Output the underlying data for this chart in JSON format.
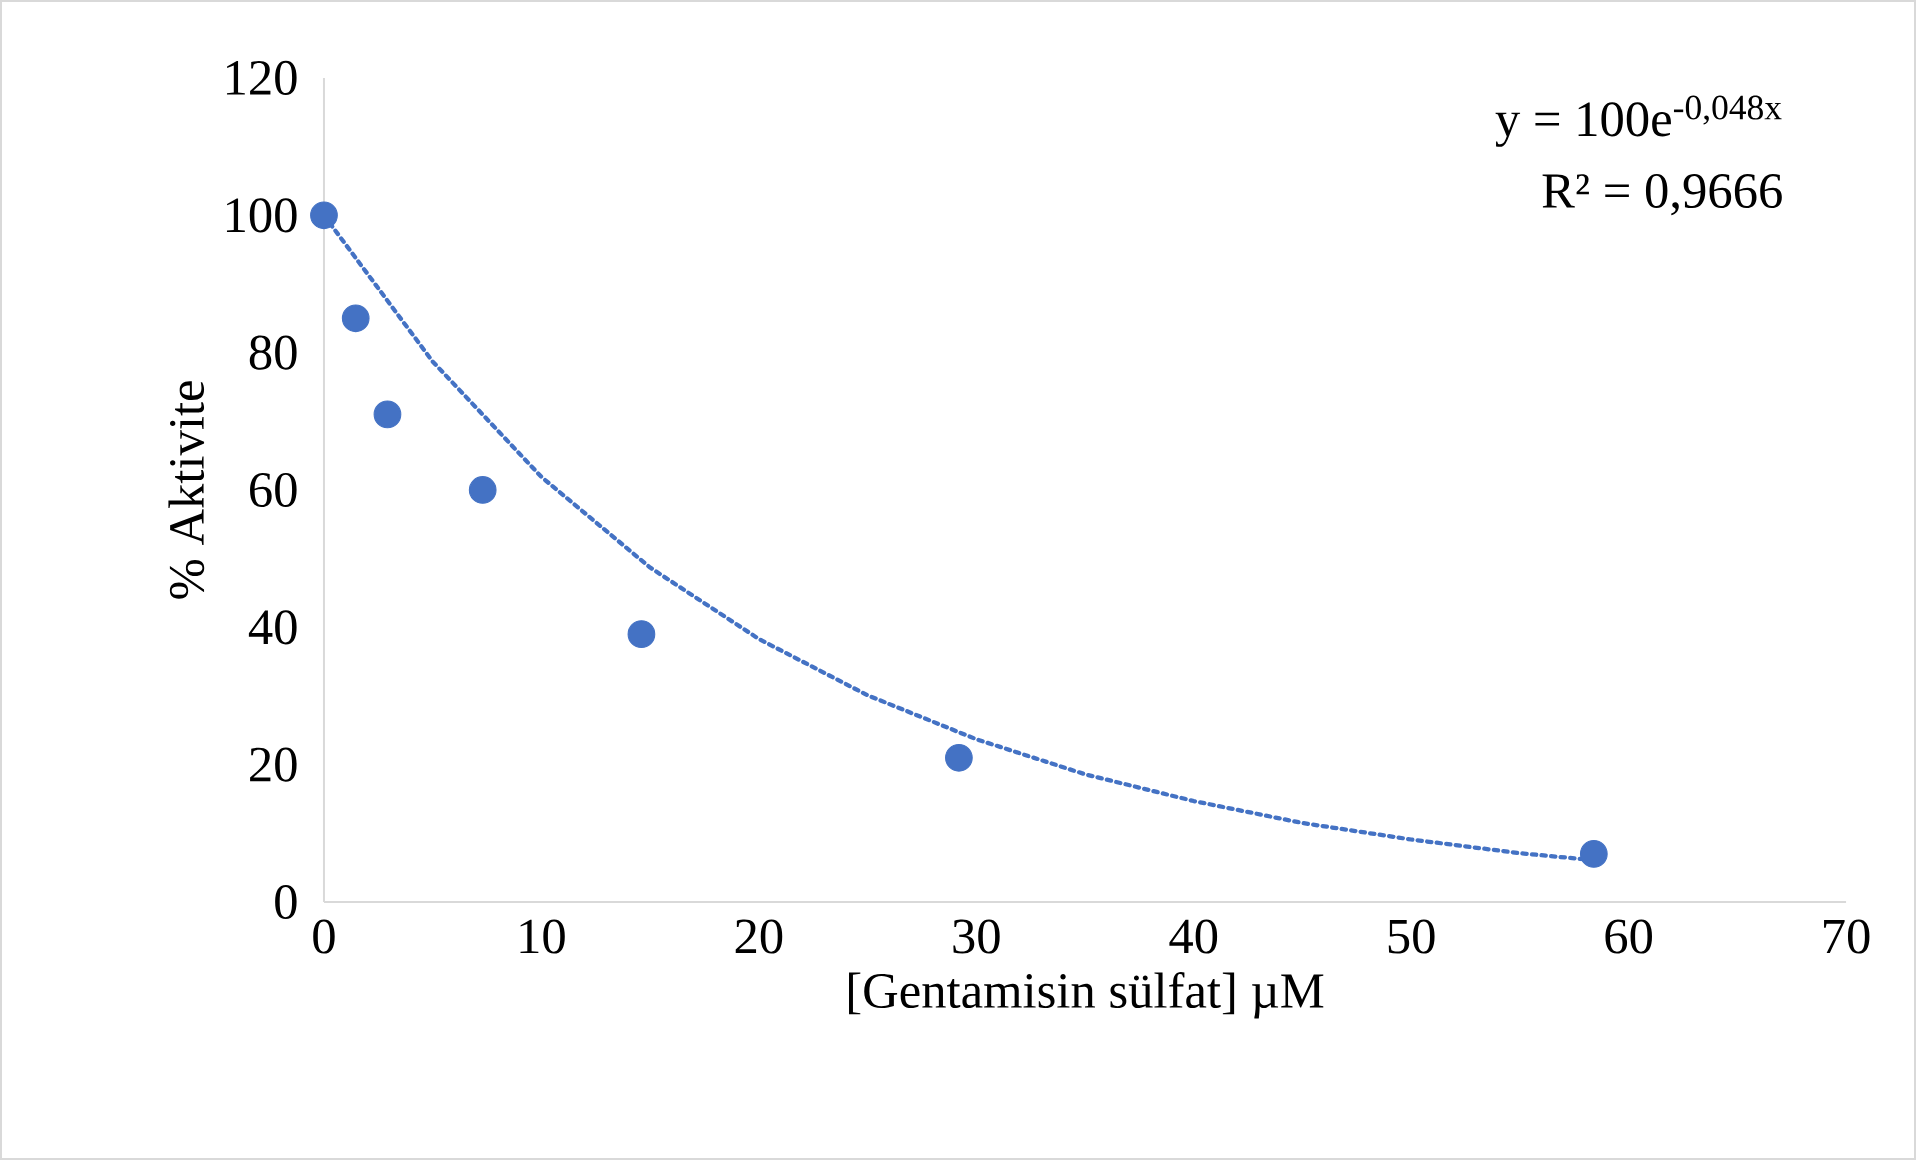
{
  "chart_data": {
    "type": "scatter",
    "xlabel": "[Gentamisin sülfat] µM",
    "ylabel": "% Aktivite",
    "xlim": [
      0,
      70
    ],
    "ylim": [
      0,
      120
    ],
    "xticks": [
      0,
      10,
      20,
      30,
      40,
      50,
      60,
      70
    ],
    "yticks": [
      0,
      20,
      40,
      60,
      80,
      100,
      120
    ],
    "grid": false,
    "marker": "circle",
    "annotations": [
      "y = 100e$^{-0,048x}$",
      "R² = 0,9666"
    ],
    "series": [
      {
        "color": "#4472c4",
        "x": [
          0,
          1.46,
          2.92,
          7.3,
          14.6,
          29.2,
          58.4
        ],
        "values": [
          100,
          85,
          71,
          60,
          39,
          21,
          7
        ]
      },
      {
        "type": "line",
        "color": "#4472c4",
        "line_style": "dotted",
        "marker": "none",
        "x": [
          0,
          5,
          10,
          15,
          20,
          25,
          30,
          35,
          40,
          45,
          50,
          55,
          58.4
        ],
        "values": [
          100,
          78.7,
          61.9,
          48.7,
          38.3,
          30.1,
          23.7,
          18.6,
          14.7,
          11.5,
          9.1,
          7.1,
          6.1
        ]
      }
    ]
  }
}
